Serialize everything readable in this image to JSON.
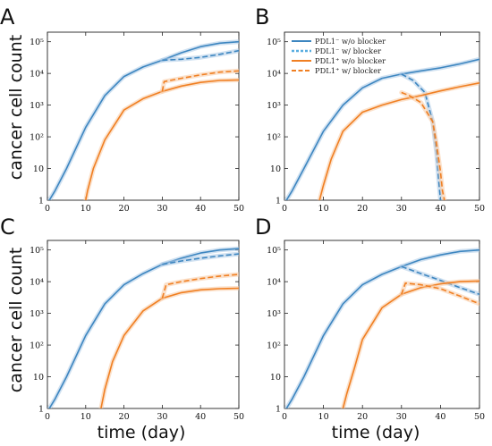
{
  "figure": {
    "ylabel": "cancer cell count",
    "xlabel": "time (day)"
  },
  "colors": {
    "blue": "#3d86c0",
    "blue_band": "#a9c8e6",
    "blue_blocker": "#5aaee0",
    "orange": "#f07f22",
    "orange_band": "#f8c8a0"
  },
  "legend": {
    "panel": "B",
    "position": "top-left",
    "entries": [
      {
        "label": "PDL1⁻ w/o blocker",
        "color": "#3d86c0",
        "style": "solid"
      },
      {
        "label": "PDL1⁻ w/ blocker",
        "color": "#5aaee0",
        "style": "dotted"
      },
      {
        "label": "PDL1⁺ w/o blocker",
        "color": "#f07f22",
        "style": "solid"
      },
      {
        "label": "PDL1⁺ w/ blocker",
        "color": "#f07f22",
        "style": "dashed"
      }
    ]
  },
  "chart_data": [
    {
      "panel": "A",
      "type": "line",
      "xlim": [
        0,
        50
      ],
      "ylim": [
        1,
        200000
      ],
      "yscale": "log",
      "xticks": [
        "0",
        "10",
        "20",
        "30",
        "40",
        "50"
      ],
      "yticks": [
        "1",
        "10",
        "10²",
        "10³",
        "10⁴",
        "10⁵"
      ],
      "series": [
        {
          "color": "blue",
          "style": "solid",
          "x": [
            0.5,
            2,
            5,
            10,
            15,
            20,
            25,
            30,
            35,
            40,
            45,
            50
          ],
          "y": [
            1,
            2,
            10,
            200,
            2000,
            8000,
            16000,
            26000,
            45000,
            70000,
            90000,
            100000
          ]
        },
        {
          "color": "blue",
          "style": "dashed",
          "x": [
            30,
            35,
            40,
            45,
            50
          ],
          "y": [
            26000,
            28000,
            32000,
            40000,
            52000
          ]
        },
        {
          "color": "orange",
          "style": "solid",
          "x": [
            10,
            10.5,
            12,
            15,
            20,
            25,
            30,
            35,
            40,
            45,
            50
          ],
          "y": [
            1,
            2,
            10,
            80,
            700,
            1600,
            2700,
            4000,
            5200,
            6000,
            6200
          ]
        },
        {
          "color": "orange",
          "style": "dashed",
          "x": [
            30,
            30.5,
            35,
            40,
            45,
            50
          ],
          "y": [
            2700,
            5500,
            7000,
            9000,
            11000,
            12000
          ]
        }
      ]
    },
    {
      "panel": "B",
      "type": "line",
      "xlim": [
        0,
        50
      ],
      "ylim": [
        1,
        200000
      ],
      "yscale": "log",
      "xticks": [
        "0",
        "10",
        "20",
        "30",
        "40",
        "50"
      ],
      "yticks": [
        "1",
        "10",
        "10²",
        "10³",
        "10⁴",
        "10⁵"
      ],
      "series": [
        {
          "color": "blue",
          "style": "solid",
          "x": [
            0.5,
            2,
            5,
            10,
            15,
            20,
            25,
            30,
            35,
            40,
            45,
            50
          ],
          "y": [
            1,
            2,
            10,
            150,
            1000,
            3500,
            7000,
            9500,
            12000,
            15000,
            20000,
            28000
          ]
        },
        {
          "color": "blue",
          "style": "dashed",
          "x": [
            30,
            33,
            36,
            38,
            39,
            39.5,
            40
          ],
          "y": [
            9500,
            6000,
            2500,
            300,
            30,
            5,
            1
          ]
        },
        {
          "color": "orange",
          "style": "solid",
          "x": [
            9,
            10,
            12,
            15,
            20,
            25,
            30,
            35,
            40,
            45,
            50
          ],
          "y": [
            1,
            3,
            20,
            150,
            600,
            1000,
            1500,
            2000,
            2800,
            3800,
            5000
          ]
        },
        {
          "color": "orange",
          "style": "dashed",
          "x": [
            30,
            32,
            35,
            38,
            39,
            40,
            40.5,
            41
          ],
          "y": [
            2500,
            2000,
            1200,
            300,
            60,
            8,
            2,
            1
          ]
        }
      ]
    },
    {
      "panel": "C",
      "type": "line",
      "xlim": [
        0,
        50
      ],
      "ylim": [
        1,
        200000
      ],
      "yscale": "log",
      "xticks": [
        "0",
        "10",
        "20",
        "30",
        "40",
        "50"
      ],
      "yticks": [
        "1",
        "10",
        "10²",
        "10³",
        "10⁴",
        "10⁵"
      ],
      "series": [
        {
          "color": "blue",
          "style": "solid",
          "x": [
            0.5,
            2,
            5,
            10,
            15,
            20,
            25,
            30,
            35,
            40,
            45,
            50
          ],
          "y": [
            1,
            2,
            10,
            200,
            2000,
            8000,
            18000,
            35000,
            55000,
            80000,
            100000,
            110000
          ]
        },
        {
          "color": "blue",
          "style": "dashed",
          "x": [
            30,
            35,
            40,
            45,
            50
          ],
          "y": [
            35000,
            45000,
            55000,
            65000,
            75000
          ]
        },
        {
          "color": "orange",
          "style": "solid",
          "x": [
            14,
            15,
            17,
            20,
            25,
            30,
            35,
            40,
            45,
            50
          ],
          "y": [
            1,
            4,
            30,
            200,
            1200,
            3000,
            4500,
            5500,
            6000,
            6200
          ]
        },
        {
          "color": "orange",
          "style": "dashed",
          "x": [
            30,
            31,
            35,
            40,
            45,
            50
          ],
          "y": [
            3000,
            8000,
            10000,
            12500,
            15000,
            17000
          ]
        }
      ]
    },
    {
      "panel": "D",
      "type": "line",
      "xlim": [
        0,
        50
      ],
      "ylim": [
        1,
        200000
      ],
      "yscale": "log",
      "xticks": [
        "0",
        "10",
        "20",
        "30",
        "40",
        "50"
      ],
      "yticks": [
        "1",
        "10",
        "10²",
        "10³",
        "10⁴",
        "10⁵"
      ],
      "series": [
        {
          "color": "blue",
          "style": "solid",
          "x": [
            0.5,
            2,
            5,
            10,
            15,
            20,
            25,
            30,
            35,
            40,
            45,
            50
          ],
          "y": [
            1,
            2,
            10,
            200,
            2000,
            8000,
            17000,
            30000,
            50000,
            70000,
            90000,
            100000
          ]
        },
        {
          "color": "blue",
          "style": "dashed",
          "x": [
            30,
            35,
            40,
            45,
            50
          ],
          "y": [
            30000,
            18000,
            11000,
            6500,
            4000
          ]
        },
        {
          "color": "orange",
          "style": "solid",
          "x": [
            15,
            16,
            18,
            20,
            25,
            30,
            35,
            40,
            45,
            50
          ],
          "y": [
            1,
            3,
            20,
            150,
            1500,
            4000,
            6500,
            8500,
            10000,
            10500
          ]
        },
        {
          "color": "orange",
          "style": "dashed",
          "x": [
            30,
            31,
            35,
            40,
            45,
            50
          ],
          "y": [
            4000,
            9000,
            8000,
            6000,
            3500,
            2000
          ]
        }
      ]
    }
  ]
}
